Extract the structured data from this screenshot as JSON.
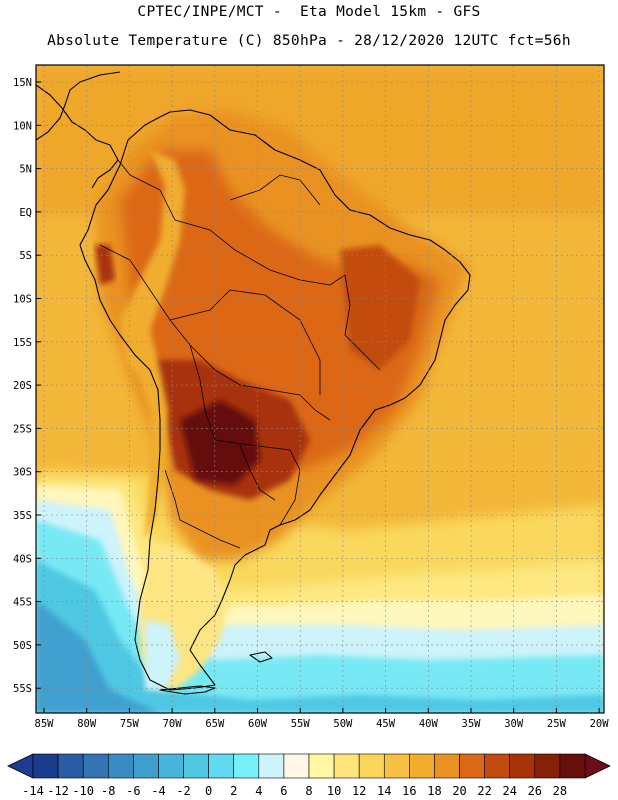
{
  "header": {
    "line1": "CPTEC/INPE/MCT -  Eta Model 15km - GFS",
    "line2": "Absolute Temperature (C) 850hPa - 28/12/2020 12UTC fct=56h"
  },
  "axes": {
    "lat_labels": [
      "15N",
      "10N",
      "5N",
      "EQ",
      "5S",
      "10S",
      "15S",
      "20S",
      "25S",
      "30S",
      "35S",
      "40S",
      "45S",
      "50S",
      "55S"
    ],
    "lat_values": [
      15,
      10,
      5,
      0,
      -5,
      -10,
      -15,
      -20,
      -25,
      -30,
      -35,
      -40,
      -45,
      -50,
      -55
    ],
    "lon_labels": [
      "85W",
      "80W",
      "75W",
      "70W",
      "65W",
      "60W",
      "55W",
      "50W",
      "45W",
      "40W",
      "35W",
      "30W",
      "25W",
      "20W"
    ],
    "lon_values": [
      -85,
      -80,
      -75,
      -70,
      -65,
      -60,
      -55,
      -50,
      -45,
      -40,
      -35,
      -30,
      -25,
      -20
    ]
  },
  "colorbar": {
    "labels": [
      "-14",
      "-12",
      "-10",
      "-8",
      "-6",
      "-4",
      "-2",
      "0",
      "2",
      "4",
      "6",
      "8",
      "10",
      "12",
      "14",
      "16",
      "18",
      "20",
      "22",
      "24",
      "26",
      "28"
    ],
    "colors": [
      "#1a3c8c",
      "#2a5ba6",
      "#3474b5",
      "#3a8ac4",
      "#3fa0cf",
      "#48b6dc",
      "#50c8e4",
      "#5fdaee",
      "#77f1f7",
      "#cdf3fb",
      "#fff8e6",
      "#fff7a2",
      "#fde57c",
      "#f9d55a",
      "#f5c043",
      "#f1ad2b",
      "#e99222",
      "#dc6716",
      "#c24b0f",
      "#a8330b",
      "#862108",
      "#65100a"
    ]
  },
  "map": {
    "region": "South America",
    "variable": "Absolute Temperature (C) 850hPa"
  }
}
